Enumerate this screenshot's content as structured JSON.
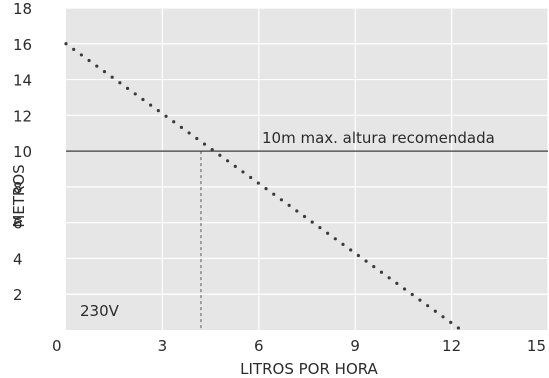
{
  "chart_data": {
    "type": "line",
    "xlabel": "LITROS POR HORA",
    "ylabel": "METROS",
    "xlim": [
      0,
      15
    ],
    "ylim": [
      0,
      18
    ],
    "xticks": [
      "0",
      "3",
      "6",
      "9",
      "12",
      "15"
    ],
    "yticks": [
      "2",
      "4",
      "6",
      "8",
      "10",
      "12",
      "14",
      "16",
      "18"
    ],
    "grid": true,
    "series": [
      {
        "x": [
          0,
          12.3
        ],
        "y": [
          16,
          0
        ],
        "style": "dotted"
      }
    ],
    "reference_line": {
      "y": 10,
      "label": "10m max. altura recomendada"
    },
    "marker_line": {
      "x": 4.2,
      "y_top": 10,
      "style": "dashed"
    },
    "annotation": "230V",
    "colors": {
      "plot_bg": "#e6e6e6",
      "grid": "#ffffff",
      "series": "#3a3a3a",
      "reference": "#3a3a3a"
    }
  }
}
